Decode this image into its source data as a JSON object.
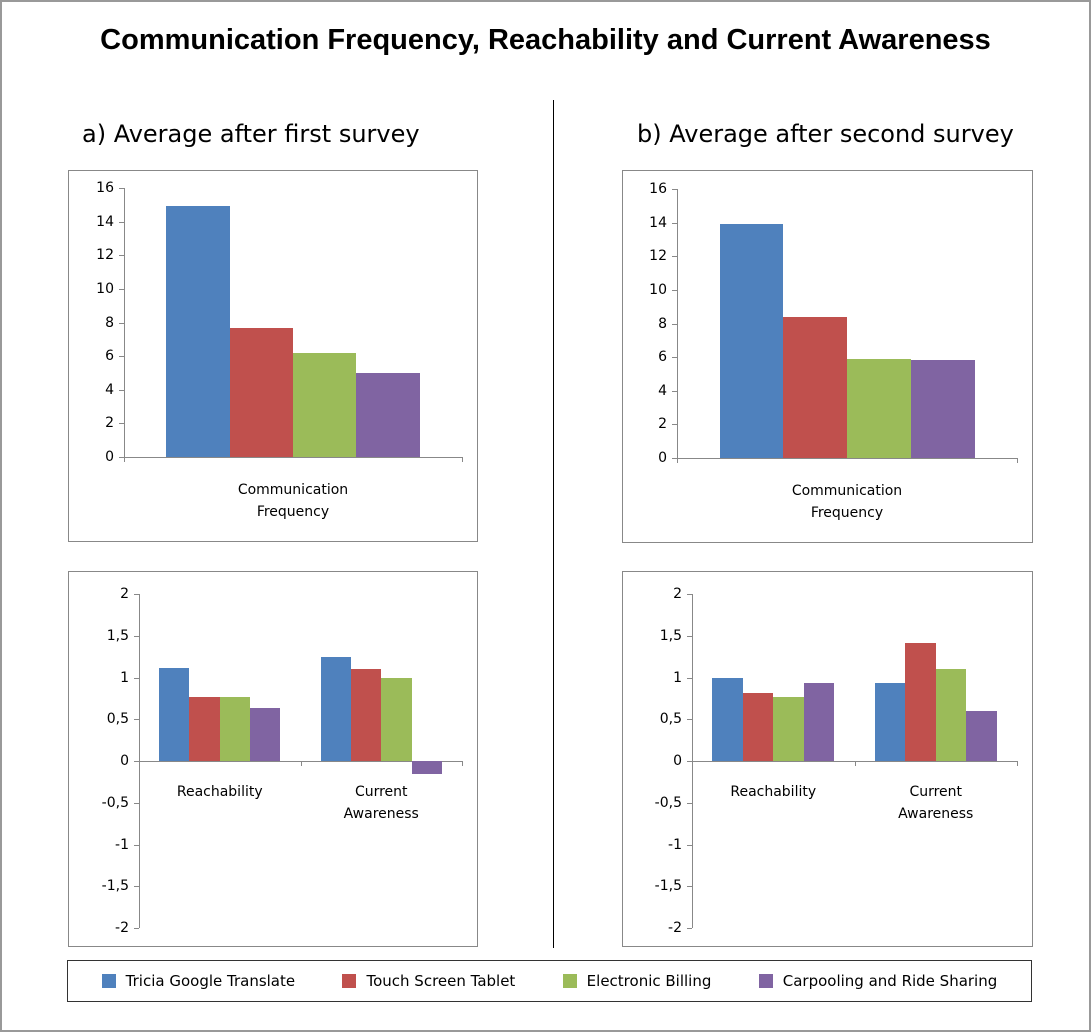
{
  "title": "Communication Frequency, Reachability and Current Awareness",
  "legend": [
    {
      "name": "Tricia Google Translate",
      "color": "#4f81bd"
    },
    {
      "name": "Touch Screen Tablet",
      "color": "#c0504d"
    },
    {
      "name": "Electronic Billing",
      "color": "#9bbb59"
    },
    {
      "name": "Carpooling and Ride Sharing",
      "color": "#8064a2"
    }
  ],
  "chart_data": [
    {
      "type": "bar",
      "subtitle": "a) Average after first survey",
      "categories": [
        "Communication Frequency"
      ],
      "series": [
        {
          "values": [
            14.9
          ]
        },
        {
          "values": [
            7.7
          ]
        },
        {
          "values": [
            6.2
          ]
        },
        {
          "values": [
            5.0
          ]
        }
      ],
      "ylim": [
        0,
        16
      ],
      "yticks": [
        0,
        2,
        4,
        6,
        8,
        10,
        12,
        14,
        16
      ]
    },
    {
      "type": "bar",
      "subtitle": "b) Average after second survey",
      "categories": [
        "Communication Frequency"
      ],
      "series": [
        {
          "values": [
            13.9
          ]
        },
        {
          "values": [
            8.4
          ]
        },
        {
          "values": [
            5.9
          ]
        },
        {
          "values": [
            5.8
          ]
        }
      ],
      "ylim": [
        0,
        16
      ],
      "yticks": [
        0,
        2,
        4,
        6,
        8,
        10,
        12,
        14,
        16
      ]
    },
    {
      "type": "bar",
      "categories": [
        "Reachability",
        "Current Awareness"
      ],
      "series": [
        {
          "values": [
            1.11,
            1.24
          ]
        },
        {
          "values": [
            0.77,
            1.1
          ]
        },
        {
          "values": [
            0.77,
            0.99
          ]
        },
        {
          "values": [
            0.63,
            -0.15
          ]
        }
      ],
      "ylim": [
        -2,
        2
      ],
      "yticks": [
        2,
        {
          "value": 1.5,
          "label": "1,5"
        },
        1,
        {
          "value": 0.5,
          "label": "0,5"
        },
        0,
        {
          "value": -0.5,
          "label": "-0,5"
        },
        -1,
        {
          "value": -1.5,
          "label": "-1,5"
        },
        -2
      ]
    },
    {
      "type": "bar",
      "categories": [
        "Reachability",
        "Current Awareness"
      ],
      "series": [
        {
          "values": [
            0.99,
            0.93
          ]
        },
        {
          "values": [
            0.82,
            1.41
          ]
        },
        {
          "values": [
            0.77,
            1.1
          ]
        },
        {
          "values": [
            0.94,
            0.6
          ]
        }
      ],
      "ylim": [
        -2,
        2
      ],
      "yticks": [
        2,
        {
          "value": 1.5,
          "label": "1,5"
        },
        1,
        {
          "value": 0.5,
          "label": "0,5"
        },
        0,
        {
          "value": -0.5,
          "label": "-0,5"
        },
        -1,
        {
          "value": -1.5,
          "label": "-1,5"
        },
        -2
      ]
    }
  ]
}
